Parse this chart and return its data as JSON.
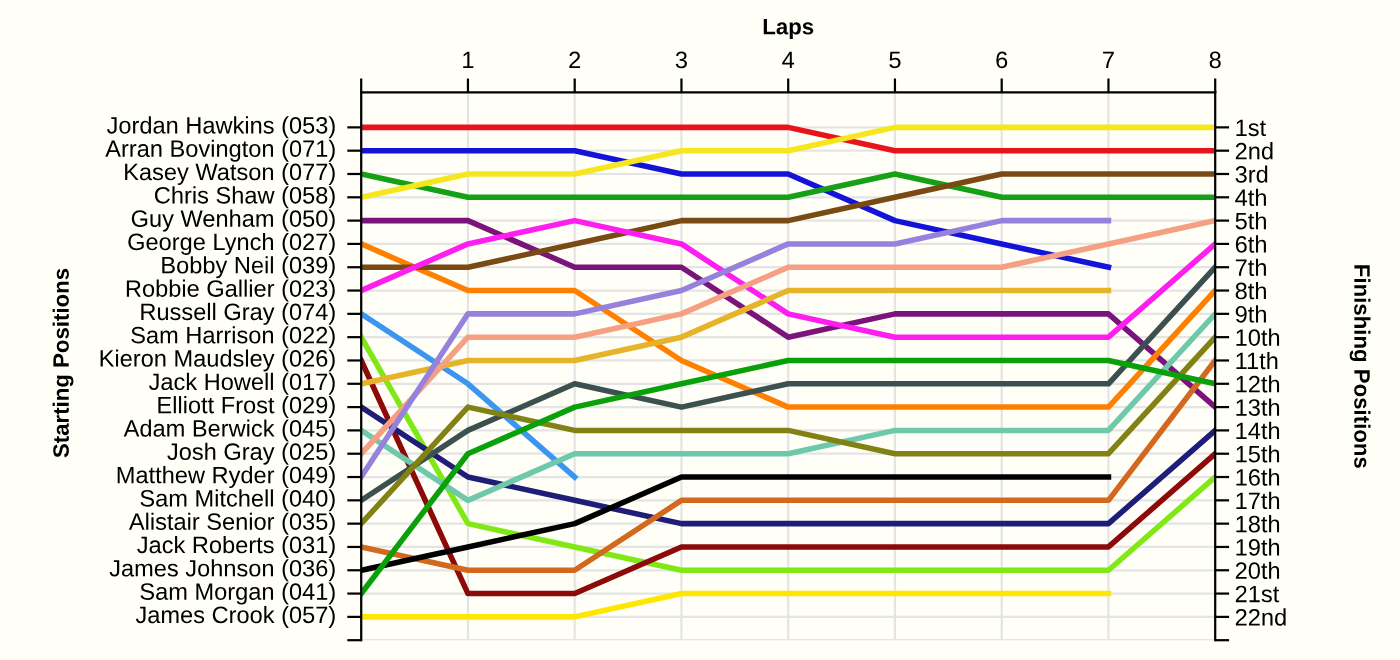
{
  "chart_data": {
    "type": "line",
    "xlabel": "Laps",
    "ylabel": "Finishing Positions",
    "annotations": [
      "Starting Positions",
      "Jordan Hawkins (053)",
      "Arran Bovington (071)",
      "Kasey Watson (077)",
      "Chris Shaw (058)",
      "Guy Wenham (050)",
      "George Lynch (027)",
      "Bobby Neil (039)",
      "Robbie Gallier (023)",
      "Russell Gray (074)",
      "Sam Harrison (022)",
      "Kieron Maudsley (026)",
      "Jack Howell (017)",
      "Elliott Frost (029)",
      "Adam Berwick (045)",
      "Josh Gray (025)",
      "Matthew Ryder (049)",
      "Sam Mitchell (040)",
      "Alistair Senior (035)",
      "Jack Roberts (031)",
      "James Johnson (036)",
      "Sam Morgan (041)",
      "James Crook (057)"
    ],
    "x": [
      0,
      1,
      2,
      3,
      4,
      5,
      6,
      7,
      8
    ],
    "xlim": [
      0,
      8
    ],
    "xticks": [
      {
        "value": 0,
        "label": null
      },
      1,
      2,
      3,
      4,
      5,
      6,
      7,
      8
    ],
    "ylim": [
      23,
      -0.5
    ],
    "yticks": [
      {
        "value": 1,
        "label": "1st"
      },
      {
        "value": 2,
        "label": "2nd"
      },
      {
        "value": 3,
        "label": "3rd"
      },
      {
        "value": 4,
        "label": "4th"
      },
      {
        "value": 5,
        "label": "5th"
      },
      {
        "value": 6,
        "label": "6th"
      },
      {
        "value": 7,
        "label": "7th"
      },
      {
        "value": 8,
        "label": "8th"
      },
      {
        "value": 9,
        "label": "9th"
      },
      {
        "value": 10,
        "label": "10th"
      },
      {
        "value": 11,
        "label": "11th"
      },
      {
        "value": 12,
        "label": "12th"
      },
      {
        "value": 13,
        "label": "13th"
      },
      {
        "value": 14,
        "label": "14th"
      },
      {
        "value": 15,
        "label": "15th"
      },
      {
        "value": 16,
        "label": "16th"
      },
      {
        "value": 17,
        "label": "17th"
      },
      {
        "value": 18,
        "label": "18th"
      },
      {
        "value": 19,
        "label": "19th"
      },
      {
        "value": 20,
        "label": "20th"
      },
      {
        "value": 21,
        "label": "21st"
      },
      {
        "value": 22,
        "label": "22nd"
      },
      {
        "value": 23,
        "label": null
      }
    ],
    "grid": true,
    "marker": "none",
    "line_style": "solid",
    "series": [
      {
        "color": "#e8141c",
        "values": [
          1,
          1,
          1,
          1,
          1,
          2,
          2,
          2,
          2
        ]
      },
      {
        "color": "#1414d8",
        "values": [
          2,
          2,
          2,
          3,
          3,
          5,
          6,
          7,
          null
        ]
      },
      {
        "color": "#16a016",
        "values": [
          3,
          4,
          4,
          4,
          4,
          3,
          4,
          4,
          4
        ]
      },
      {
        "color": "#f5e61e",
        "values": [
          4,
          3,
          3,
          2,
          2,
          1,
          1,
          1,
          1
        ]
      },
      {
        "color": "#7a137a",
        "values": [
          5,
          5,
          7,
          7,
          10,
          9,
          9,
          9,
          13
        ]
      },
      {
        "color": "#ff8000",
        "values": [
          6,
          8,
          8,
          11,
          13,
          13,
          13,
          13,
          8
        ]
      },
      {
        "color": "#7a4a14",
        "values": [
          7,
          7,
          6,
          5,
          5,
          4,
          3,
          3,
          3
        ]
      },
      {
        "color": "#ff1ef0",
        "values": [
          8,
          6,
          5,
          6,
          9,
          10,
          10,
          10,
          6
        ]
      },
      {
        "color": "#3c96f0",
        "values": [
          9,
          12,
          16,
          null,
          null,
          null,
          null,
          null,
          null
        ]
      },
      {
        "color": "#80e814",
        "values": [
          10,
          18,
          19,
          20,
          20,
          20,
          20,
          20,
          16
        ]
      },
      {
        "color": "#8c0a0a",
        "values": [
          11,
          21,
          21,
          19,
          19,
          19,
          19,
          19,
          15
        ]
      },
      {
        "color": "#e6b428",
        "values": [
          12,
          11,
          11,
          10,
          8,
          8,
          8,
          8,
          null
        ]
      },
      {
        "color": "#1e1e78",
        "values": [
          13,
          16,
          17,
          18,
          18,
          18,
          18,
          18,
          14
        ]
      },
      {
        "color": "#6ec8aa",
        "values": [
          14,
          17,
          15,
          15,
          15,
          14,
          14,
          14,
          9
        ]
      },
      {
        "color": "#f5a082",
        "values": [
          15,
          10,
          10,
          9,
          7,
          7,
          7,
          6,
          5
        ]
      },
      {
        "color": "#9682dc",
        "values": [
          16,
          9,
          9,
          8,
          6,
          6,
          5,
          5,
          null
        ]
      },
      {
        "color": "#3c5050",
        "values": [
          17,
          14,
          12,
          13,
          12,
          12,
          12,
          12,
          7
        ]
      },
      {
        "color": "#828214",
        "values": [
          18,
          13,
          14,
          14,
          14,
          15,
          15,
          15,
          10
        ]
      },
      {
        "color": "#d2691e",
        "values": [
          19,
          20,
          20,
          17,
          17,
          17,
          17,
          17,
          11
        ]
      },
      {
        "color": "#000000",
        "values": [
          20,
          19,
          18,
          16,
          16,
          16,
          16,
          16,
          null
        ]
      },
      {
        "color": "#0aa00a",
        "values": [
          21,
          15,
          13,
          12,
          11,
          11,
          11,
          11,
          12
        ]
      },
      {
        "color": "#ffe600",
        "values": [
          22,
          22,
          22,
          21,
          21,
          21,
          21,
          21,
          null
        ]
      }
    ]
  }
}
